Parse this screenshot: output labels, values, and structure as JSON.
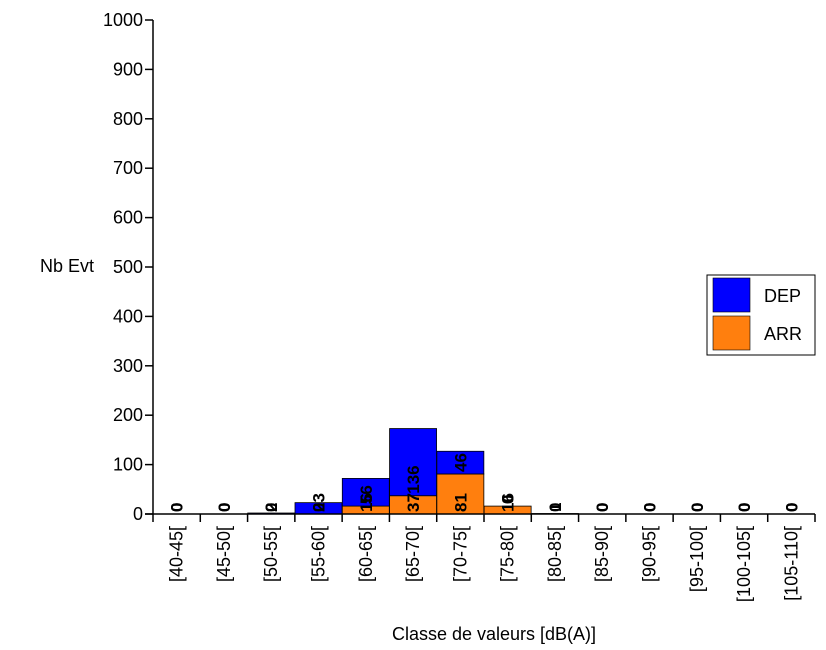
{
  "chart_data": {
    "type": "bar",
    "stacked": true,
    "xlabel": "Classe de valeurs [dB(A)]",
    "ylabel": "Nb Evt",
    "ylim": [
      0,
      1000
    ],
    "yticks": [
      0,
      100,
      200,
      300,
      400,
      500,
      600,
      700,
      800,
      900,
      1000
    ],
    "grid": false,
    "legend_position": "right",
    "categories": [
      "[40-45[",
      "[45-50[",
      "[50-55[",
      "[55-60[",
      "[60-65[",
      "[65-70[",
      "[70-75[",
      "[75-80[",
      "[80-85[",
      "[85-90[",
      "[90-95[",
      "[95-100[",
      "[100-105[",
      "[105-110["
    ],
    "series": [
      {
        "name": "ARR",
        "color": "#ff7f0e",
        "values": [
          0,
          0,
          0,
          0,
          16,
          37,
          81,
          16,
          0,
          0,
          0,
          0,
          0,
          0
        ]
      },
      {
        "name": "DEP",
        "color": "#0000ff",
        "values": [
          0,
          0,
          2,
          23,
          56,
          136,
          46,
          0,
          1,
          0,
          0,
          0,
          0,
          0
        ]
      }
    ]
  }
}
